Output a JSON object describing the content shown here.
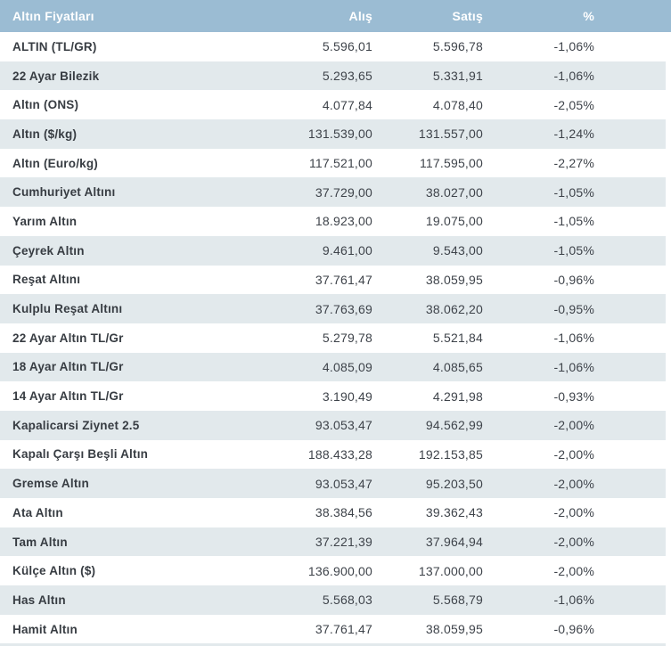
{
  "header": {
    "title": "Altın Fiyatları",
    "col_alis": "Alış",
    "col_satis": "Satış",
    "col_pct": "%"
  },
  "colors": {
    "header_bg": "#9bbcd3",
    "header_text": "#ffffff",
    "stripe_bg": "#e2e9ec",
    "label_text": "#373c42",
    "number_text": "#3e434a"
  },
  "rows": [
    {
      "name": "ALTIN (TL/GR)",
      "alis": "5.596,01",
      "satis": "5.596,78",
      "pct": "-1,06%"
    },
    {
      "name": "22 Ayar Bilezik",
      "alis": "5.293,65",
      "satis": "5.331,91",
      "pct": "-1,06%"
    },
    {
      "name": "Altın (ONS)",
      "alis": "4.077,84",
      "satis": "4.078,40",
      "pct": "-2,05%"
    },
    {
      "name": "Altın ($/kg)",
      "alis": "131.539,00",
      "satis": "131.557,00",
      "pct": "-1,24%"
    },
    {
      "name": "Altın (Euro/kg)",
      "alis": "117.521,00",
      "satis": "117.595,00",
      "pct": "-2,27%"
    },
    {
      "name": "Cumhuriyet Altını",
      "alis": "37.729,00",
      "satis": "38.027,00",
      "pct": "-1,05%"
    },
    {
      "name": "Yarım Altın",
      "alis": "18.923,00",
      "satis": "19.075,00",
      "pct": "-1,05%"
    },
    {
      "name": "Çeyrek Altın",
      "alis": "9.461,00",
      "satis": "9.543,00",
      "pct": "-1,05%"
    },
    {
      "name": "Reşat Altını",
      "alis": "37.761,47",
      "satis": "38.059,95",
      "pct": "-0,96%"
    },
    {
      "name": "Kulplu Reşat Altını",
      "alis": "37.763,69",
      "satis": "38.062,20",
      "pct": "-0,95%"
    },
    {
      "name": "22 Ayar Altın TL/Gr",
      "alis": "5.279,78",
      "satis": "5.521,84",
      "pct": "-1,06%"
    },
    {
      "name": "18 Ayar Altın TL/Gr",
      "alis": "4.085,09",
      "satis": "4.085,65",
      "pct": "-1,06%"
    },
    {
      "name": "14 Ayar Altın TL/Gr",
      "alis": "3.190,49",
      "satis": "4.291,98",
      "pct": "-0,93%"
    },
    {
      "name": "Kapalicarsi Ziynet 2.5",
      "alis": "93.053,47",
      "satis": "94.562,99",
      "pct": "-2,00%"
    },
    {
      "name": "Kapalı Çarşı Beşli Altın",
      "alis": "188.433,28",
      "satis": "192.153,85",
      "pct": "-2,00%"
    },
    {
      "name": "Gremse Altın",
      "alis": "93.053,47",
      "satis": "95.203,50",
      "pct": "-2,00%"
    },
    {
      "name": "Ata Altın",
      "alis": "38.384,56",
      "satis": "39.362,43",
      "pct": "-2,00%"
    },
    {
      "name": "Tam Altın",
      "alis": "37.221,39",
      "satis": "37.964,94",
      "pct": "-2,00%"
    },
    {
      "name": "Külçe Altın ($)",
      "alis": "136.900,00",
      "satis": "137.000,00",
      "pct": "-2,00%"
    },
    {
      "name": "Has Altın",
      "alis": "5.568,03",
      "satis": "5.568,79",
      "pct": "-1,06%"
    },
    {
      "name": "Hamit Altın",
      "alis": "37.761,47",
      "satis": "38.059,95",
      "pct": "-0,96%"
    }
  ]
}
